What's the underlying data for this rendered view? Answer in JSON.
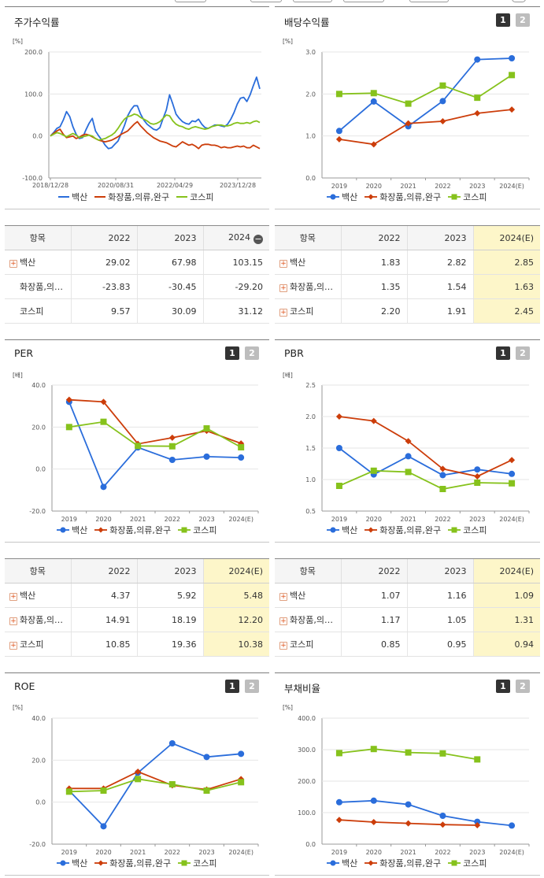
{
  "colors": {
    "baeksan": "#2a6ddb",
    "cosmetics": "#cc3d0a",
    "kospi": "#86c21c",
    "highlight": "#fdf6c9"
  },
  "legend": {
    "baeksan": "백산",
    "cosmetics": "화장품,의류,완구",
    "kospi": "코스피"
  },
  "icons": {
    "expand": "plus-box-icon",
    "collapse": "minus-circle-icon"
  },
  "panels": {
    "stock_return": {
      "title": "주가수익률",
      "unit": "[%]",
      "chart_data": {
        "type": "line",
        "y_ticks": [
          "200.0",
          "100.0",
          "0.0",
          "-100.0"
        ],
        "ylim": [
          -100,
          200
        ],
        "x_ticks": [
          "2018/12/28",
          "2020/08/31",
          "2022/04/29",
          "2023/12/28"
        ],
        "series": [
          {
            "name": "백산",
            "values": [
              0,
              8,
              18,
              22,
              38,
              58,
              46,
              22,
              4,
              -6,
              -4,
              14,
              30,
              42,
              12,
              0,
              -10,
              -22,
              -30,
              -28,
              -20,
              -12,
              6,
              25,
              48,
              62,
              72,
              72,
              52,
              38,
              28,
              22,
              16,
              14,
              20,
              42,
              62,
              98,
              76,
              52,
              42,
              34,
              30,
              28,
              36,
              34,
              40,
              28,
              20,
              18,
              22,
              26,
              26,
              24,
              22,
              28,
              40,
              56,
              76,
              90,
              92,
              82,
              98,
              120,
              140,
              112
            ]
          },
          {
            "name": "화장품,의류,완구",
            "values": [
              0,
              6,
              12,
              16,
              4,
              -4,
              -2,
              0,
              -6,
              -3,
              2,
              4,
              2,
              -2,
              -6,
              -10,
              -12,
              -14,
              -12,
              -10,
              -6,
              -2,
              4,
              8,
              12,
              20,
              28,
              34,
              24,
              16,
              8,
              2,
              -4,
              -8,
              -12,
              -14,
              -16,
              -20,
              -24,
              -26,
              -20,
              -14,
              -18,
              -22,
              -20,
              -24,
              -30,
              -22,
              -20,
              -20,
              -22,
              -22,
              -24,
              -28,
              -26,
              -28,
              -28,
              -26,
              -24,
              -26,
              -24,
              -28,
              -28,
              -22,
              -26,
              -30
            ]
          },
          {
            "name": "코스피",
            "values": [
              0,
              4,
              8,
              6,
              2,
              -2,
              2,
              6,
              2,
              -4,
              -2,
              0,
              2,
              0,
              -6,
              -10,
              -8,
              -6,
              -2,
              2,
              8,
              18,
              30,
              40,
              46,
              48,
              52,
              50,
              44,
              40,
              36,
              30,
              28,
              30,
              34,
              42,
              50,
              48,
              36,
              28,
              24,
              22,
              18,
              16,
              20,
              22,
              20,
              18,
              16,
              18,
              22,
              24,
              26,
              26,
              24,
              24,
              26,
              30,
              32,
              30,
              30,
              32,
              30,
              34,
              36,
              32
            ]
          }
        ]
      },
      "table": {
        "headers": [
          "항목",
          "2022",
          "2023",
          "2024"
        ],
        "rows": [
          {
            "label": "백산",
            "values": [
              "29.02",
              "67.98",
              "103.15"
            ],
            "expand": true
          },
          {
            "label": "화장품,의…",
            "values": [
              "-23.83",
              "-30.45",
              "-29.20"
            ],
            "expand": false
          },
          {
            "label": "코스피",
            "values": [
              "9.57",
              "30.09",
              "31.12"
            ],
            "expand": false
          }
        ]
      }
    },
    "dividend_yield": {
      "title": "배당수익률",
      "unit": "[%]",
      "buttons": [
        "1",
        "2"
      ],
      "chart_data": {
        "type": "line",
        "categories": [
          "2019",
          "2020",
          "2021",
          "2022",
          "2023",
          "2024(E)"
        ],
        "y_ticks": [
          "3.0",
          "2.0",
          "1.0",
          "0.0"
        ],
        "ylim": [
          0,
          3
        ],
        "series": [
          {
            "name": "백산",
            "values": [
              1.12,
              1.82,
              1.23,
              1.83,
              2.82,
              2.85
            ]
          },
          {
            "name": "화장품,의류,완구",
            "values": [
              0.92,
              0.8,
              1.3,
              1.35,
              1.54,
              1.63
            ]
          },
          {
            "name": "코스피",
            "values": [
              2.0,
              2.02,
              1.77,
              2.2,
              1.91,
              2.45
            ]
          }
        ]
      },
      "table": {
        "headers": [
          "항목",
          "2022",
          "2023",
          "2024(E)"
        ],
        "rows": [
          {
            "label": "백산",
            "values": [
              "1.83",
              "2.82",
              "2.85"
            ]
          },
          {
            "label": "화장품,의…",
            "values": [
              "1.35",
              "1.54",
              "1.63"
            ]
          },
          {
            "label": "코스피",
            "values": [
              "2.20",
              "1.91",
              "2.45"
            ]
          }
        ]
      }
    },
    "per": {
      "title": "PER",
      "unit": "[배]",
      "buttons": [
        "1",
        "2"
      ],
      "chart_data": {
        "type": "line",
        "categories": [
          "2019",
          "2020",
          "2021",
          "2022",
          "2023",
          "2024(E)"
        ],
        "y_ticks": [
          "40.0",
          "20.0",
          "0.0",
          "-20.0"
        ],
        "ylim": [
          -20,
          40
        ],
        "series": [
          {
            "name": "백산",
            "values": [
              32,
              -8.5,
              10.3,
              4.37,
              5.92,
              5.48
            ]
          },
          {
            "name": "화장품,의류,완구",
            "values": [
              33,
              32,
              12,
              14.91,
              18.19,
              12.2
            ]
          },
          {
            "name": "코스피",
            "values": [
              20,
              22.5,
              11,
              10.85,
              19.36,
              10.38
            ]
          }
        ]
      },
      "table": {
        "headers": [
          "항목",
          "2022",
          "2023",
          "2024(E)"
        ],
        "rows": [
          {
            "label": "백산",
            "values": [
              "4.37",
              "5.92",
              "5.48"
            ]
          },
          {
            "label": "화장품,의…",
            "values": [
              "14.91",
              "18.19",
              "12.20"
            ]
          },
          {
            "label": "코스피",
            "values": [
              "10.85",
              "19.36",
              "10.38"
            ]
          }
        ]
      }
    },
    "pbr": {
      "title": "PBR",
      "unit": "[배]",
      "buttons": [
        "1",
        "2"
      ],
      "chart_data": {
        "type": "line",
        "categories": [
          "2019",
          "2020",
          "2021",
          "2022",
          "2023",
          "2024(E)"
        ],
        "y_ticks": [
          "2.5",
          "2.0",
          "1.5",
          "1.0",
          "0.5"
        ],
        "ylim": [
          0.5,
          2.5
        ],
        "series": [
          {
            "name": "백산",
            "values": [
              1.5,
              1.08,
              1.37,
              1.07,
              1.16,
              1.09
            ]
          },
          {
            "name": "화장품,의류,완구",
            "values": [
              2.0,
              1.93,
              1.61,
              1.17,
              1.05,
              1.31
            ]
          },
          {
            "name": "코스피",
            "values": [
              0.9,
              1.14,
              1.12,
              0.85,
              0.95,
              0.94
            ]
          }
        ]
      },
      "table": {
        "headers": [
          "항목",
          "2022",
          "2023",
          "2024(E)"
        ],
        "rows": [
          {
            "label": "백산",
            "values": [
              "1.07",
              "1.16",
              "1.09"
            ]
          },
          {
            "label": "화장품,의…",
            "values": [
              "1.17",
              "1.05",
              "1.31"
            ]
          },
          {
            "label": "코스피",
            "values": [
              "0.85",
              "0.95",
              "0.94"
            ]
          }
        ]
      }
    },
    "roe": {
      "title": "ROE",
      "unit": "[%]",
      "buttons": [
        "1",
        "2"
      ],
      "chart_data": {
        "type": "line",
        "categories": [
          "2019",
          "2020",
          "2021",
          "2022",
          "2023",
          "2024(E)"
        ],
        "y_ticks": [
          "40.0",
          "20.0",
          "0.0",
          "-20.0"
        ],
        "ylim": [
          -20,
          40
        ],
        "series": [
          {
            "name": "백산",
            "values": [
              5.5,
              -11.5,
              14,
              28,
              21.5,
              23
            ]
          },
          {
            "name": "화장품,의류,완구",
            "values": [
              6.5,
              6.5,
              14.5,
              8,
              6,
              11
            ]
          },
          {
            "name": "코스피",
            "values": [
              5,
              5.5,
              11,
              8.5,
              5.5,
              9.5
            ]
          }
        ]
      }
    },
    "debt_ratio": {
      "title": "부채비율",
      "unit": "[%]",
      "buttons": [
        "1",
        "2"
      ],
      "chart_data": {
        "type": "line",
        "categories": [
          "2019",
          "2020",
          "2021",
          "2022",
          "2023",
          "2024(E)"
        ],
        "y_ticks": [
          "400.0",
          "300.0",
          "200.0",
          "100.0",
          "0.0"
        ],
        "ylim": [
          0,
          400
        ],
        "series": [
          {
            "name": "백산",
            "values": [
              133,
              138,
              126,
              90,
              71,
              59
            ]
          },
          {
            "name": "화장품,의류,완구",
            "values": [
              77,
              70,
              66,
              62,
              60,
              null
            ]
          },
          {
            "name": "코스피",
            "values": [
              289,
              302,
              291,
              288,
              269,
              null
            ]
          }
        ]
      }
    }
  }
}
